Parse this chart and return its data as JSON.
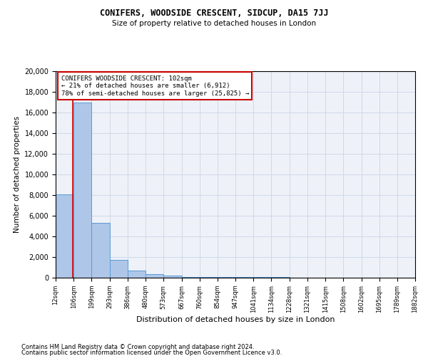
{
  "title": "CONIFERS, WOODSIDE CRESCENT, SIDCUP, DA15 7JJ",
  "subtitle": "Size of property relative to detached houses in London",
  "xlabel": "Distribution of detached houses by size in London",
  "ylabel": "Number of detached properties",
  "footnote1": "Contains HM Land Registry data © Crown copyright and database right 2024.",
  "footnote2": "Contains public sector information licensed under the Open Government Licence v3.0.",
  "annotation_line1": "CONIFERS WOODSIDE CRESCENT: 102sqm",
  "annotation_line2": "← 21% of detached houses are smaller (6,912)",
  "annotation_line3": "78% of semi-detached houses are larger (25,825) →",
  "property_size": 102,
  "bar_edges": [
    12,
    106,
    199,
    293,
    386,
    480,
    573,
    667,
    760,
    854,
    947,
    1041,
    1134,
    1228,
    1321,
    1415,
    1508,
    1602,
    1695,
    1789,
    1882
  ],
  "bar_heights": [
    8100,
    17000,
    5300,
    1700,
    700,
    350,
    200,
    100,
    75,
    60,
    50,
    40,
    35,
    30,
    25,
    20,
    15,
    12,
    10,
    8
  ],
  "bar_color": "#aec6e8",
  "bar_edge_color": "#5b9bd5",
  "vline_color": "#cc0000",
  "annotation_box_color": "#cc0000",
  "grid_color": "#d0d8e8",
  "background_color": "#eef2f8",
  "ylim": [
    0,
    20000
  ],
  "yticks": [
    0,
    2000,
    4000,
    6000,
    8000,
    10000,
    12000,
    14000,
    16000,
    18000,
    20000
  ],
  "xtick_labels": [
    "12sqm",
    "106sqm",
    "199sqm",
    "293sqm",
    "386sqm",
    "480sqm",
    "573sqm",
    "667sqm",
    "760sqm",
    "854sqm",
    "947sqm",
    "1041sqm",
    "1134sqm",
    "1228sqm",
    "1321sqm",
    "1415sqm",
    "1508sqm",
    "1602sqm",
    "1695sqm",
    "1789sqm",
    "1882sqm"
  ]
}
